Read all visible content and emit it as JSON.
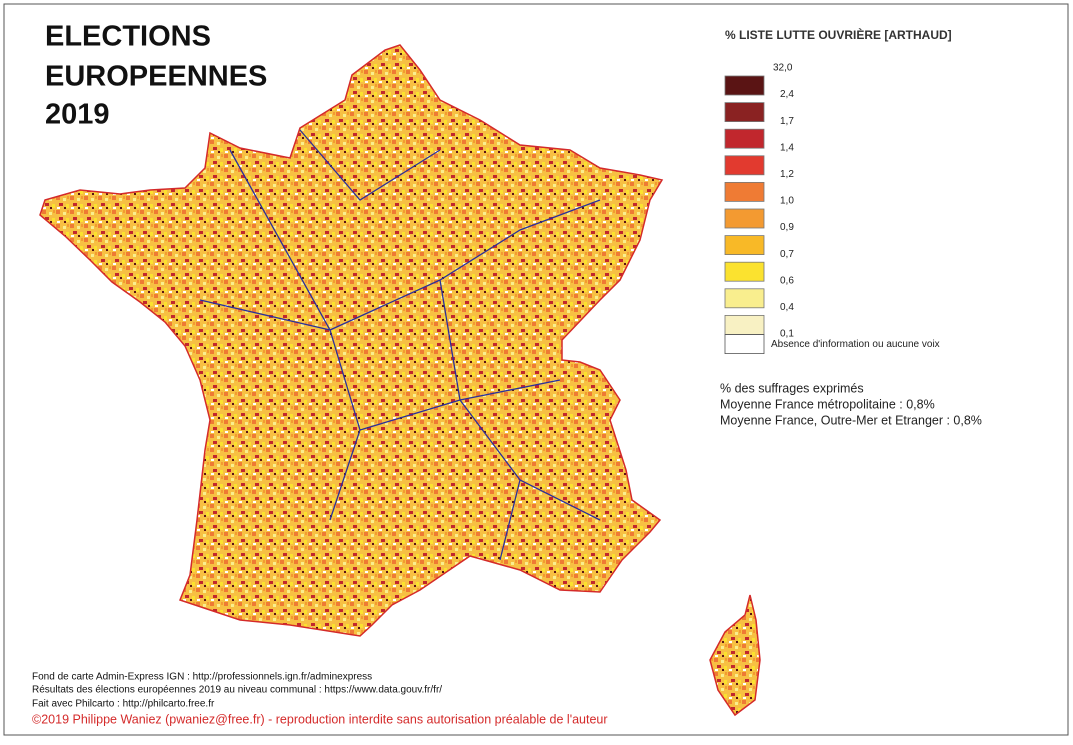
{
  "title": [
    "ELECTIONS",
    "EUROPEENNES",
    "2019"
  ],
  "legend": {
    "title": "% LISTE LUTTE OUVRIÈRE [ARTHAUD]",
    "breaks": [
      "32,0",
      "2,4",
      "1,7",
      "1,4",
      "1,2",
      "1,0",
      "0,9",
      "0,7",
      "0,6",
      "0,4",
      "0,1"
    ],
    "colors": [
      "#5a1414",
      "#8a2222",
      "#c1272d",
      "#e23a2f",
      "#ef7b34",
      "#f39a31",
      "#f8b927",
      "#fbe22f",
      "#f9ee8e",
      "#f8f1c3"
    ],
    "no_data": "Absence d'information ou aucune voix"
  },
  "notes": [
    "% des suffrages exprimés",
    "Moyenne France métropolitaine : 0,8%",
    "Moyenne France, Outre-Mer et Etranger : 0,8%"
  ],
  "sources": [
    "Fond de carte Admin-Express IGN : http://professionnels.ign.fr/adminexpress",
    "Résultats des élections européennes 2019 au niveau communal : https://www.data.gouv.fr/fr/",
    "Fait avec Philcarto : http://philcarto.free.fr"
  ],
  "copyright": "©2019 Philippe Waniez (pwaniez@free.fr) - reproduction interdite sans autorisation préalable de l'auteur"
}
